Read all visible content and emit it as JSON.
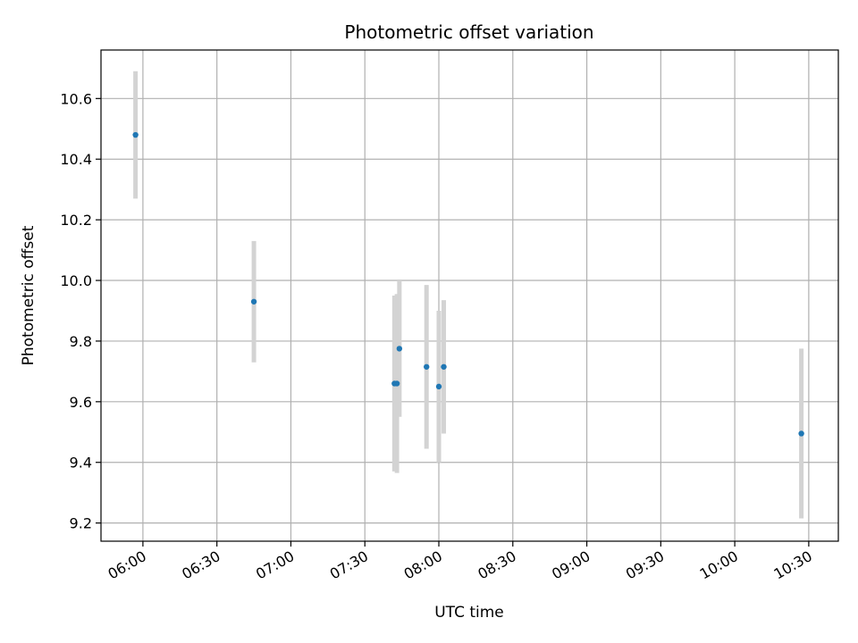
{
  "chart_data": {
    "type": "scatter",
    "title": "Photometric offset variation",
    "xlabel": "UTC time",
    "ylabel": "Photometric offset",
    "grid": true,
    "xlim": [
      "05:43",
      "10:42"
    ],
    "ylim": [
      9.14,
      10.76
    ],
    "x_ticks": [
      "06:00",
      "06:30",
      "07:00",
      "07:30",
      "08:00",
      "08:30",
      "09:00",
      "09:30",
      "10:00",
      "10:30"
    ],
    "y_ticks": [
      9.2,
      9.4,
      9.6,
      9.8,
      10.0,
      10.2,
      10.4,
      10.6
    ],
    "y_tick_labels": [
      "9.2",
      "9.4",
      "9.6",
      "9.8",
      "10.0",
      "10.2",
      "10.4",
      "10.6"
    ],
    "marker_color": "#1f77b4",
    "errorbar_color": "#d3d3d3",
    "series": [
      {
        "points": [
          {
            "x": "05:57",
            "y": 10.48,
            "ylow": 10.27,
            "yhigh": 10.69
          },
          {
            "x": "06:45",
            "y": 9.93,
            "ylow": 9.73,
            "yhigh": 10.13
          },
          {
            "x": "07:42",
            "y": 9.66,
            "ylow": 9.37,
            "yhigh": 9.95
          },
          {
            "x": "07:43",
            "y": 9.66,
            "ylow": 9.365,
            "yhigh": 9.955
          },
          {
            "x": "07:44",
            "y": 9.775,
            "ylow": 9.55,
            "yhigh": 10.0
          },
          {
            "x": "07:55",
            "y": 9.715,
            "ylow": 9.445,
            "yhigh": 9.985
          },
          {
            "x": "08:00",
            "y": 9.65,
            "ylow": 9.4,
            "yhigh": 9.9
          },
          {
            "x": "08:02",
            "y": 9.715,
            "ylow": 9.495,
            "yhigh": 9.935
          },
          {
            "x": "10:27",
            "y": 9.495,
            "ylow": 9.215,
            "yhigh": 9.775
          }
        ]
      }
    ]
  }
}
